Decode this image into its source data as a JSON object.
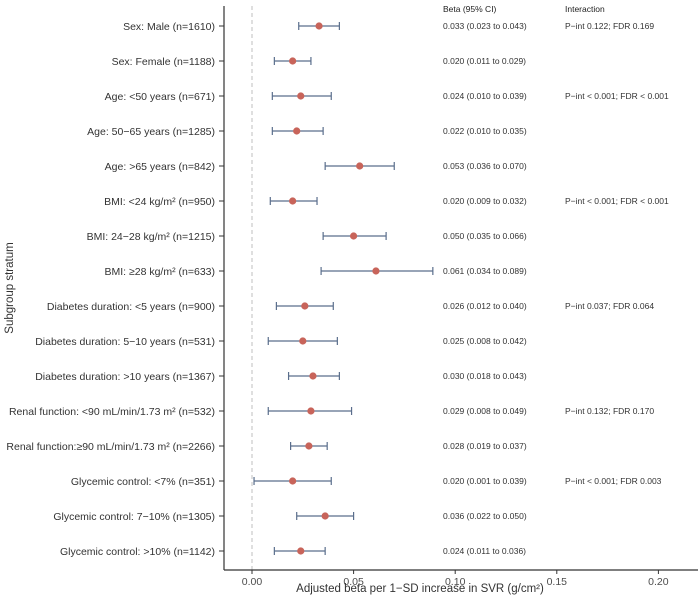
{
  "chart_data": {
    "type": "forest",
    "xlabel": "Adjusted beta per 1−SD increase in SVR (g/cm²)",
    "ylabel": "Subgroup stratum",
    "xlim": [
      -0.015,
      0.22
    ],
    "xticks": [
      0.0,
      0.05,
      0.1,
      0.15,
      0.2
    ],
    "xtick_labels": [
      "0.00",
      "0.05",
      "0.10",
      "0.15",
      "0.20"
    ],
    "reference_line": 0,
    "column_headers": {
      "beta": "Beta (95% CI)",
      "interaction": "Interaction"
    },
    "point_color": "#c8645a",
    "ci_color": "#5a6e8c",
    "rows": [
      {
        "label": "Sex: Male (n=1610)",
        "beta": 0.033,
        "lo": 0.023,
        "hi": 0.043,
        "beta_text": "0.033 (0.023 to 0.043)",
        "interaction": "P−int 0.122; FDR 0.169"
      },
      {
        "label": "Sex: Female (n=1188)",
        "beta": 0.02,
        "lo": 0.011,
        "hi": 0.029,
        "beta_text": "0.020 (0.011 to 0.029)",
        "interaction": ""
      },
      {
        "label": "Age: <50 years (n=671)",
        "beta": 0.024,
        "lo": 0.01,
        "hi": 0.039,
        "beta_text": "0.024 (0.010 to 0.039)",
        "interaction": "P−int < 0.001; FDR < 0.001"
      },
      {
        "label": "Age: 50−65 years (n=1285)",
        "beta": 0.022,
        "lo": 0.01,
        "hi": 0.035,
        "beta_text": "0.022 (0.010 to 0.035)",
        "interaction": ""
      },
      {
        "label": "Age: >65 years (n=842)",
        "beta": 0.053,
        "lo": 0.036,
        "hi": 0.07,
        "beta_text": "0.053 (0.036 to 0.070)",
        "interaction": ""
      },
      {
        "label": "BMI: <24 kg/m² (n=950)",
        "beta": 0.02,
        "lo": 0.009,
        "hi": 0.032,
        "beta_text": "0.020 (0.009 to 0.032)",
        "interaction": "P−int < 0.001; FDR < 0.001"
      },
      {
        "label": "BMI: 24−28 kg/m² (n=1215)",
        "beta": 0.05,
        "lo": 0.035,
        "hi": 0.066,
        "beta_text": "0.050 (0.035 to 0.066)",
        "interaction": ""
      },
      {
        "label": "BMI: ≥28 kg/m² (n=633)",
        "beta": 0.061,
        "lo": 0.034,
        "hi": 0.089,
        "beta_text": "0.061 (0.034 to 0.089)",
        "interaction": ""
      },
      {
        "label": "Diabetes duration: <5 years (n=900)",
        "beta": 0.026,
        "lo": 0.012,
        "hi": 0.04,
        "beta_text": "0.026 (0.012 to 0.040)",
        "interaction": "P−int 0.037; FDR 0.064"
      },
      {
        "label": "Diabetes duration: 5−10 years (n=531)",
        "beta": 0.025,
        "lo": 0.008,
        "hi": 0.042,
        "beta_text": "0.025 (0.008 to 0.042)",
        "interaction": ""
      },
      {
        "label": "Diabetes duration: >10 years (n=1367)",
        "beta": 0.03,
        "lo": 0.018,
        "hi": 0.043,
        "beta_text": "0.030 (0.018 to 0.043)",
        "interaction": ""
      },
      {
        "label": "Renal function: <90 mL/min/1.73 m² (n=532)",
        "beta": 0.029,
        "lo": 0.008,
        "hi": 0.049,
        "beta_text": "0.029 (0.008 to 0.049)",
        "interaction": "P−int 0.132; FDR 0.170"
      },
      {
        "label": "Renal function:≥90 mL/min/1.73 m² (n=2266)",
        "beta": 0.028,
        "lo": 0.019,
        "hi": 0.037,
        "beta_text": "0.028 (0.019 to 0.037)",
        "interaction": ""
      },
      {
        "label": "Glycemic control: <7% (n=351)",
        "beta": 0.02,
        "lo": 0.001,
        "hi": 0.039,
        "beta_text": "0.020 (0.001 to 0.039)",
        "interaction": "P−int < 0.001; FDR 0.003"
      },
      {
        "label": "Glycemic control: 7−10% (n=1305)",
        "beta": 0.036,
        "lo": 0.022,
        "hi": 0.05,
        "beta_text": "0.036 (0.022 to 0.050)",
        "interaction": ""
      },
      {
        "label": "Glycemic control: >10% (n=1142)",
        "beta": 0.024,
        "lo": 0.011,
        "hi": 0.036,
        "beta_text": "0.024 (0.011 to 0.036)",
        "interaction": ""
      }
    ]
  }
}
